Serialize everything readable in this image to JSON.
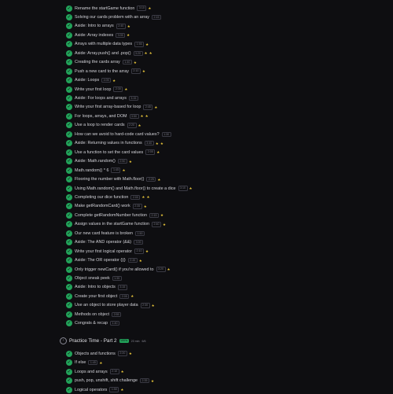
{
  "lessons_top": [
    {
      "title": "Rename the startGame function",
      "chip": "3:10",
      "stars": 1
    },
    {
      "title": "Solving our cards problem with an array",
      "chip": "2:15",
      "stars": 0
    },
    {
      "title": "Aside: Intro to arrays",
      "chip": "2:40",
      "stars": 1
    },
    {
      "title": "Aside: Array indexes",
      "chip": "3:05",
      "stars": 1
    },
    {
      "title": "Arrays with multiple data types",
      "chip": "1:55",
      "stars": 1
    },
    {
      "title": "Aside: Array.push() and .pop()",
      "chip": "3:20",
      "stars": 2
    },
    {
      "title": "Creating the cards array",
      "chip": "1:40",
      "stars": 1
    },
    {
      "title": "Push a new card to the array",
      "chip": "2:10",
      "stars": 1
    },
    {
      "title": "Aside: Loops",
      "chip": "4:05",
      "stars": 1
    },
    {
      "title": "Write your first loop",
      "chip": "2:30",
      "stars": 1
    },
    {
      "title": "Aside: For loops and arrays",
      "chip": "3:15",
      "stars": 0
    },
    {
      "title": "Write your first array-based for loop",
      "chip": "2:45",
      "stars": 1
    },
    {
      "title": "For loops, arrays, and DOM",
      "chip": "3:50",
      "stars": 2
    },
    {
      "title": "Use a loop to render cards",
      "chip": "2:20",
      "stars": 1
    },
    {
      "title": "How can we avoid to hard-code card values?",
      "chip": "1:30",
      "stars": 0
    },
    {
      "title": "Aside: Returning values in functions",
      "chip": "3:40",
      "stars": 2
    },
    {
      "title": "Use a function to set the card values",
      "chip": "2:05",
      "stars": 1
    },
    {
      "title": "Aside: Math.random()",
      "chip": "2:50",
      "stars": 1
    },
    {
      "title": "Math.random() * 6",
      "chip": "1:45",
      "stars": 1
    },
    {
      "title": "Flooring the number with Math.floor()",
      "chip": "2:25",
      "stars": 1
    },
    {
      "title": "Using Math.random() and Math.floor() to create a dice",
      "chip": "3:10",
      "stars": 1
    },
    {
      "title": "Completing our dice function",
      "chip": "2:00",
      "stars": 2
    },
    {
      "title": "Make getRandomCard() work",
      "chip": "2:35",
      "stars": 1
    },
    {
      "title": "Complete getRandomNumber function",
      "chip": "2:15",
      "stars": 1
    },
    {
      "title": "Assign values in the startGame function",
      "chip": "2:40",
      "stars": 1
    },
    {
      "title": "Our new card feature is broken",
      "chip": "1:50",
      "stars": 0
    },
    {
      "title": "Aside: The AND operator (&&)",
      "chip": "3:00",
      "stars": 0
    },
    {
      "title": "Write your first logical operator",
      "chip": "2:10",
      "stars": 1
    },
    {
      "title": "Aside: The OR operator (||)",
      "chip": "2:45",
      "stars": 1
    },
    {
      "title": "Only trigger newCard() if you're allowed to",
      "chip": "3:20",
      "stars": 1
    },
    {
      "title": "Object sneak peek",
      "chip": "1:35",
      "stars": 0
    },
    {
      "title": "Aside: Intro to objects",
      "chip": "3:15",
      "stars": 0
    },
    {
      "title": "Create your first object",
      "chip": "2:05",
      "stars": 1
    },
    {
      "title": "Use an object to store player data",
      "chip": "2:30",
      "stars": 1
    },
    {
      "title": "Methods on object",
      "chip": "2:55",
      "stars": 0
    },
    {
      "title": "Congrats & recap",
      "chip": "1:40",
      "stars": 0
    }
  ],
  "section": {
    "icon": "chevron-icon",
    "title": "Practice Time - Part 2",
    "badge": "100%",
    "meta": "23 min",
    "count": "6/6"
  },
  "lessons_bottom": [
    {
      "title": "Objects and functions",
      "chip": "2:20",
      "stars": 1
    },
    {
      "title": "If else",
      "chip": "1:45",
      "stars": 1
    },
    {
      "title": "Loops and arrays",
      "chip": "2:10",
      "stars": 1
    },
    {
      "title": "push, pop, unshift, shift challenge",
      "chip": "2:35",
      "stars": 1
    },
    {
      "title": "Logical operators",
      "chip": "1:50",
      "stars": 1
    }
  ],
  "colors": {
    "check": "#22a35a",
    "star": "#e8c53a",
    "bg": "#0e0e11"
  }
}
